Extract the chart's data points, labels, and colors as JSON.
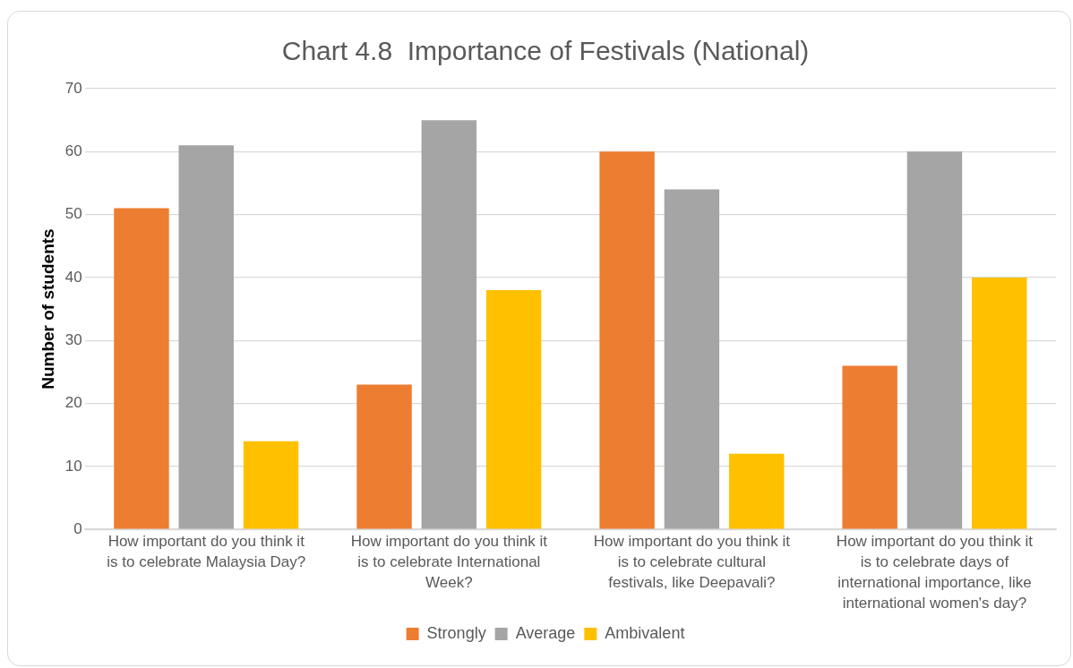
{
  "chart_data": {
    "type": "bar",
    "title": "Chart 4.8  Importance of Festivals (National)",
    "ylabel": "Number of students",
    "categories": [
      "How important do you think it is to celebrate Malaysia Day?",
      "How important do you think it is to celebrate International Week?",
      "How important do you think it is to celebrate cultural festivals, like Deepavali?",
      "How important do you think it is to celebrate days of international importance, like international women's day?"
    ],
    "series": [
      {
        "name": "Strongly",
        "color": "#ed7d31",
        "values": [
          51,
          23,
          60,
          26
        ]
      },
      {
        "name": "Average",
        "color": "#a5a5a5",
        "values": [
          61,
          65,
          54,
          60
        ]
      },
      {
        "name": "Ambivalent",
        "color": "#ffc000",
        "values": [
          14,
          38,
          12,
          40
        ]
      }
    ],
    "ylim": [
      0,
      70
    ],
    "yticks": [
      0,
      10,
      20,
      30,
      40,
      50,
      60,
      70
    ],
    "grid": "y",
    "legend": "bottom"
  }
}
